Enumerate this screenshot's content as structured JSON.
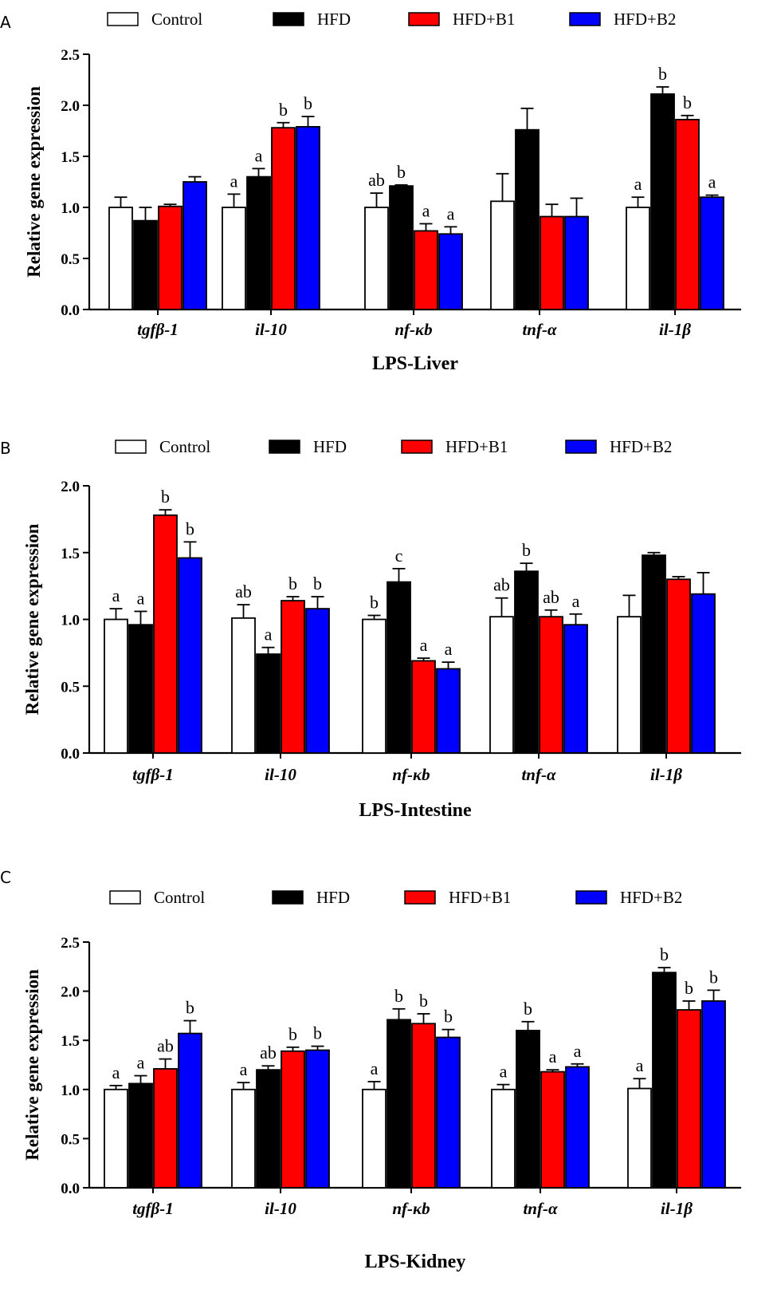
{
  "legend": [
    "Control",
    "HFD",
    "HFD+B1",
    "HFD+B2"
  ],
  "colors": {
    "Control": "#ffffff",
    "HFD": "#000000",
    "HFD+B1": "#ff0000",
    "HFD+B2": "#0000ff",
    "stroke": "#000000"
  },
  "chart_data": [
    {
      "panel": "A",
      "type": "bar",
      "title": "",
      "xlabel": "LPS-Liver",
      "ylabel": "Relative gene expression",
      "ylim": [
        0,
        2.5
      ],
      "yticks": [
        "0.0",
        "0.5",
        "1.0",
        "1.5",
        "2.0",
        "2.5"
      ],
      "categories": [
        "tgfβ-1",
        "il-10",
        "nf-κb",
        "tnf-α",
        "il-1β"
      ],
      "series": [
        {
          "name": "Control",
          "values": [
            1.0,
            1.0,
            1.0,
            1.06,
            1.0
          ],
          "errors": [
            0.1,
            0.13,
            0.14,
            0.27,
            0.1
          ],
          "labels": [
            "",
            "a",
            "ab",
            "",
            "a"
          ]
        },
        {
          "name": "HFD",
          "values": [
            0.87,
            1.3,
            1.21,
            1.76,
            2.11
          ],
          "errors": [
            0.13,
            0.08,
            0.01,
            0.21,
            0.07
          ],
          "labels": [
            "",
            "a",
            "b",
            "",
            "b"
          ]
        },
        {
          "name": "HFD+B1",
          "values": [
            1.01,
            1.78,
            0.77,
            0.91,
            1.86
          ],
          "errors": [
            0.02,
            0.05,
            0.07,
            0.12,
            0.04
          ],
          "labels": [
            "",
            "b",
            "a",
            "",
            "b"
          ]
        },
        {
          "name": "HFD+B2",
          "values": [
            1.25,
            1.79,
            0.74,
            0.91,
            1.1
          ],
          "errors": [
            0.05,
            0.1,
            0.07,
            0.18,
            0.02
          ],
          "labels": [
            "",
            "b",
            "a",
            "",
            "a"
          ]
        }
      ]
    },
    {
      "panel": "B",
      "type": "bar",
      "title": "",
      "xlabel": "LPS-Intestine",
      "ylabel": "Relative gene expression",
      "ylim": [
        0,
        2.0
      ],
      "yticks": [
        "0.0",
        "0.5",
        "1.0",
        "1.5",
        "2.0"
      ],
      "categories": [
        "tgfβ-1",
        "il-10",
        "nf-κb",
        "tnf-α",
        "il-1β"
      ],
      "series": [
        {
          "name": "Control",
          "values": [
            1.0,
            1.01,
            1.0,
            1.02,
            1.02
          ],
          "errors": [
            0.08,
            0.1,
            0.03,
            0.14,
            0.16
          ],
          "labels": [
            "a",
            "ab",
            "b",
            "ab",
            ""
          ]
        },
        {
          "name": "HFD",
          "values": [
            0.96,
            0.74,
            1.28,
            1.36,
            1.48
          ],
          "errors": [
            0.1,
            0.05,
            0.1,
            0.06,
            0.02
          ],
          "labels": [
            "a",
            "a",
            "c",
            "b",
            ""
          ]
        },
        {
          "name": "HFD+B1",
          "values": [
            1.78,
            1.14,
            0.69,
            1.02,
            1.3
          ],
          "errors": [
            0.04,
            0.03,
            0.02,
            0.05,
            0.02
          ],
          "labels": [
            "b",
            "b",
            "a",
            "ab",
            ""
          ]
        },
        {
          "name": "HFD+B2",
          "values": [
            1.46,
            1.08,
            0.63,
            0.96,
            1.19
          ],
          "errors": [
            0.12,
            0.09,
            0.05,
            0.08,
            0.16
          ],
          "labels": [
            "b",
            "b",
            "a",
            "a",
            ""
          ]
        }
      ]
    },
    {
      "panel": "C",
      "type": "bar",
      "title": "",
      "xlabel": "LPS-Kidney",
      "ylabel": "Relative gene expression",
      "ylim": [
        0,
        2.5
      ],
      "yticks": [
        "0.0",
        "0.5",
        "1.0",
        "1.5",
        "2.0",
        "2.5"
      ],
      "categories": [
        "tgfβ-1",
        "il-10",
        "nf-κb",
        "tnf-α",
        "il-1β"
      ],
      "series": [
        {
          "name": "Control",
          "values": [
            1.0,
            1.0,
            1.0,
            1.0,
            1.01
          ],
          "errors": [
            0.04,
            0.07,
            0.08,
            0.05,
            0.1
          ],
          "labels": [
            "a",
            "a",
            "a",
            "a",
            "a"
          ]
        },
        {
          "name": "HFD",
          "values": [
            1.06,
            1.2,
            1.71,
            1.6,
            2.19
          ],
          "errors": [
            0.08,
            0.04,
            0.11,
            0.09,
            0.05
          ],
          "labels": [
            "a",
            "ab",
            "b",
            "b",
            "b"
          ]
        },
        {
          "name": "HFD+B1",
          "values": [
            1.21,
            1.39,
            1.67,
            1.18,
            1.81
          ],
          "errors": [
            0.1,
            0.04,
            0.1,
            0.02,
            0.09
          ],
          "labels": [
            "ab",
            "b",
            "b",
            "a",
            "b"
          ]
        },
        {
          "name": "HFD+B2",
          "values": [
            1.57,
            1.4,
            1.53,
            1.23,
            1.9
          ],
          "errors": [
            0.13,
            0.04,
            0.08,
            0.03,
            0.11
          ],
          "labels": [
            "b",
            "b",
            "b",
            "a",
            "b"
          ]
        }
      ]
    }
  ]
}
